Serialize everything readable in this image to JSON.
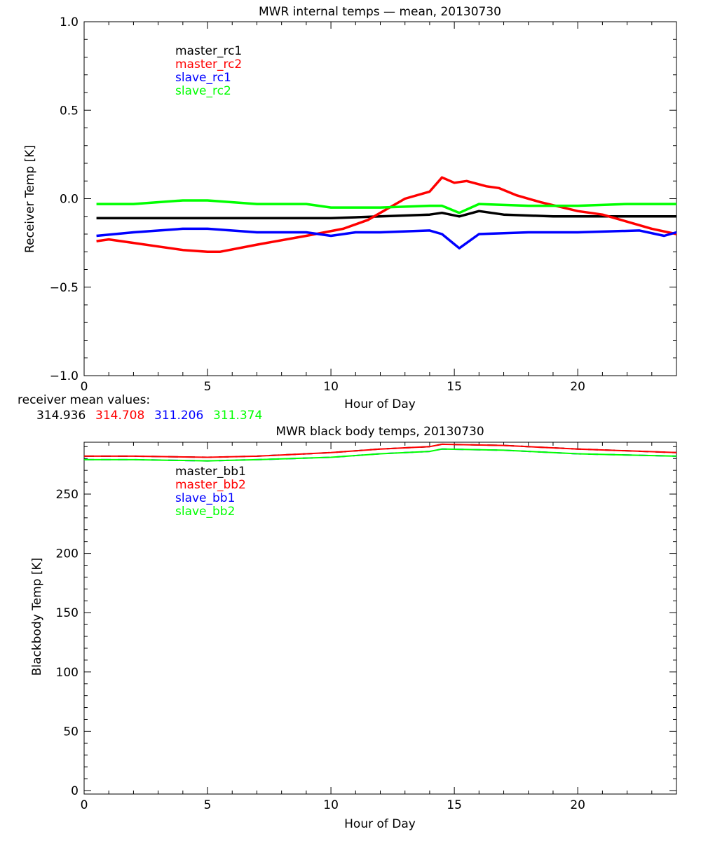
{
  "chart_data": [
    {
      "type": "line",
      "title": "MWR internal temps — mean, 20130730",
      "xlabel": "Hour of Day",
      "ylabel": "Receiver Temp [K]",
      "xlim": [
        0,
        24
      ],
      "ylim": [
        -1.0,
        1.0
      ],
      "xticks": [
        0,
        5,
        10,
        15,
        20
      ],
      "yticks": [
        -1.0,
        -0.5,
        0.0,
        0.5,
        1.0
      ],
      "ytick_labels": [
        "−1.0",
        "−0.5",
        "0.0",
        "0.5",
        "1.0"
      ],
      "grid": false,
      "legend_placement": "top-left",
      "series": [
        {
          "name": "master_rc1",
          "color": "#000000",
          "x": [
            0.5,
            2,
            4,
            6,
            8,
            10,
            12,
            14,
            14.5,
            15.2,
            16,
            17,
            19,
            21,
            23,
            24
          ],
          "y": [
            -0.11,
            -0.11,
            -0.11,
            -0.11,
            -0.11,
            -0.11,
            -0.1,
            -0.09,
            -0.08,
            -0.1,
            -0.07,
            -0.09,
            -0.1,
            -0.1,
            -0.1,
            -0.1
          ]
        },
        {
          "name": "master_rc2",
          "color": "#ff0000",
          "x": [
            0.5,
            1,
            2,
            3,
            4,
            5,
            5.5,
            7,
            9,
            10.5,
            11.5,
            12.5,
            13,
            14,
            14.5,
            15,
            15.5,
            16.3,
            16.8,
            17.5,
            18.5,
            20,
            21,
            22,
            23,
            24
          ],
          "y": [
            -0.24,
            -0.23,
            -0.25,
            -0.27,
            -0.29,
            -0.3,
            -0.3,
            -0.26,
            -0.21,
            -0.17,
            -0.12,
            -0.04,
            0.0,
            0.04,
            0.12,
            0.09,
            0.1,
            0.07,
            0.06,
            0.02,
            -0.02,
            -0.07,
            -0.09,
            -0.13,
            -0.17,
            -0.2
          ]
        },
        {
          "name": "slave_rc1",
          "color": "#0000ff",
          "x": [
            0.5,
            2,
            4,
            5,
            7,
            9,
            10,
            11,
            12,
            14,
            14.5,
            15.2,
            16,
            18,
            20,
            22.5,
            23.5,
            24
          ],
          "y": [
            -0.21,
            -0.19,
            -0.17,
            -0.17,
            -0.19,
            -0.19,
            -0.21,
            -0.19,
            -0.19,
            -0.18,
            -0.2,
            -0.28,
            -0.2,
            -0.19,
            -0.19,
            -0.18,
            -0.21,
            -0.19
          ]
        },
        {
          "name": "slave_rc2",
          "color": "#00ff00",
          "x": [
            0.5,
            2,
            4,
            5,
            7,
            9,
            10,
            12,
            14,
            14.5,
            15.2,
            16,
            18,
            20,
            22,
            24
          ],
          "y": [
            -0.03,
            -0.03,
            -0.01,
            -0.01,
            -0.03,
            -0.03,
            -0.05,
            -0.05,
            -0.04,
            -0.04,
            -0.08,
            -0.03,
            -0.04,
            -0.04,
            -0.03,
            -0.03
          ]
        }
      ],
      "annotation": {
        "label": "receiver mean values:",
        "values": [
          {
            "text": "314.936",
            "color": "#000000"
          },
          {
            "text": "314.708",
            "color": "#ff0000"
          },
          {
            "text": "311.206",
            "color": "#0000ff"
          },
          {
            "text": "311.374",
            "color": "#00ff00"
          }
        ]
      }
    },
    {
      "type": "line",
      "title": "MWR black body temps, 20130730",
      "xlabel": "Hour of Day",
      "ylabel": "Blackbody Temp [K]",
      "xlim": [
        0,
        24
      ],
      "ylim": [
        0,
        294
      ],
      "xticks": [
        0,
        5,
        10,
        15,
        20
      ],
      "yticks": [
        0,
        50,
        100,
        150,
        200,
        250
      ],
      "grid": false,
      "legend_placement": "top-left",
      "series": [
        {
          "name": "master_bb1",
          "color": "#000000",
          "dashed": true,
          "x": [
            0,
            2,
            5,
            7,
            10,
            12,
            14,
            14.5,
            17,
            20,
            24
          ],
          "y": [
            282,
            282,
            281,
            282,
            285,
            288,
            290,
            292,
            291,
            288,
            285
          ]
        },
        {
          "name": "master_bb2",
          "color": "#ff0000",
          "x": [
            0,
            2,
            5,
            7,
            10,
            12,
            14,
            14.5,
            17,
            20,
            24
          ],
          "y": [
            282,
            282,
            281,
            282,
            285,
            288,
            290,
            292,
            291,
            288,
            285
          ]
        },
        {
          "name": "slave_bb1",
          "color": "#0000ff",
          "dashed": true,
          "x": [
            0,
            2,
            5,
            7,
            10,
            12,
            14,
            14.5,
            17,
            20,
            24
          ],
          "y": [
            279,
            279,
            278,
            279,
            281,
            284,
            286,
            288,
            287,
            284,
            282
          ]
        },
        {
          "name": "slave_bb2",
          "color": "#00ff00",
          "x": [
            0,
            2,
            5,
            7,
            10,
            12,
            14,
            14.5,
            17,
            20,
            24
          ],
          "y": [
            279,
            279,
            278,
            279,
            281,
            284,
            286,
            288,
            287,
            284,
            282
          ]
        }
      ]
    }
  ]
}
